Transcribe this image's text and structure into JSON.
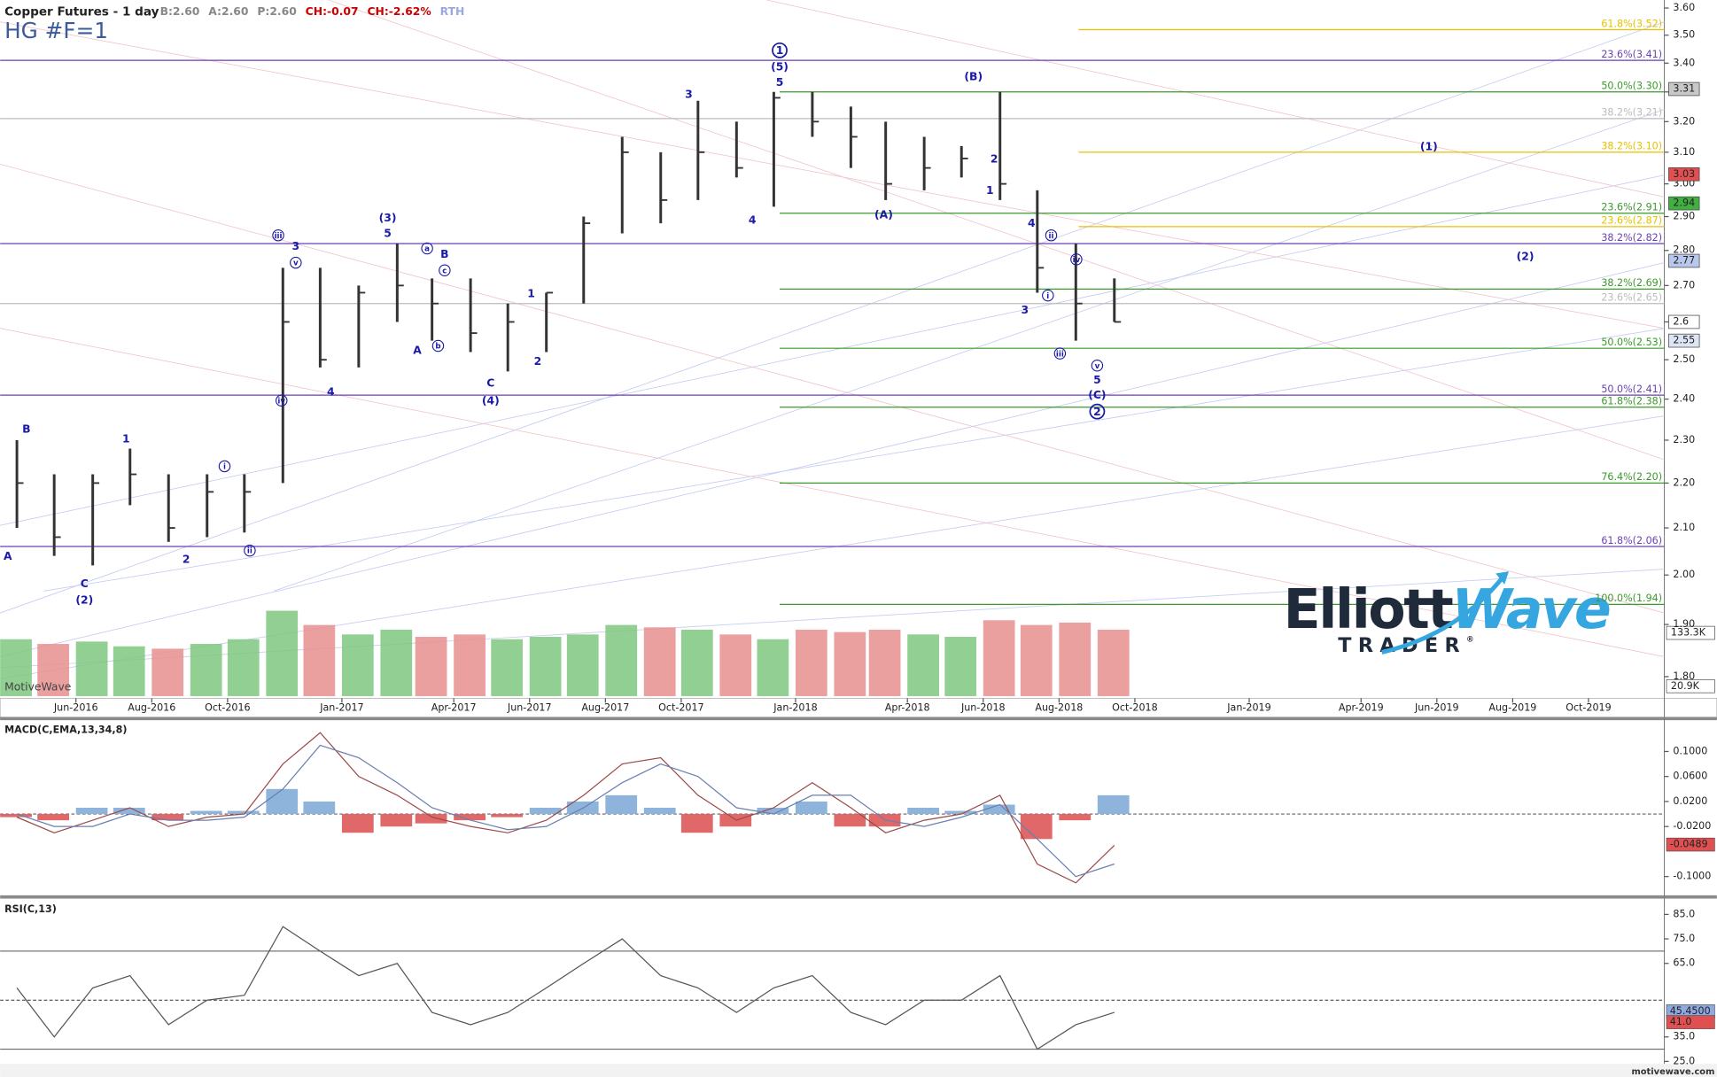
{
  "header": {
    "title": "Copper Futures - 1 day",
    "symbol": "HG #F=1",
    "quotes": [
      {
        "text": "B:2.60",
        "color": "#888888"
      },
      {
        "text": "A:2.60",
        "color": "#888888"
      },
      {
        "text": "P:2.60",
        "color": "#888888"
      },
      {
        "text": "CH:-0.07",
        "color": "#cc0000"
      },
      {
        "text": "CH:-2.62%",
        "color": "#cc0000"
      },
      {
        "text": "RTH",
        "color": "#9aa8e0"
      }
    ],
    "watermark": "MotiveWave",
    "footer": "motivewave.com"
  },
  "logo": {
    "word1": "Elliott",
    "word2": "Wave",
    "word3": "TRADER",
    "mark": "®"
  },
  "chart_data": [
    {
      "type": "hlc",
      "log_scale": true,
      "x": [
        "2016-04",
        "2016-05",
        "2016-06",
        "2016-07",
        "2016-08",
        "2016-09",
        "2016-10",
        "2016-11",
        "2016-12",
        "2017-01",
        "2017-02",
        "2017-03",
        "2017-04",
        "2017-05",
        "2017-06",
        "2017-07",
        "2017-08",
        "2017-09",
        "2017-10",
        "2017-11",
        "2017-12",
        "2018-01",
        "2018-02",
        "2018-03",
        "2018-04",
        "2018-05",
        "2018-06",
        "2018-07",
        "2018-08",
        "2018-09"
      ],
      "high": [
        2.3,
        2.22,
        2.22,
        2.28,
        2.22,
        2.22,
        2.22,
        2.75,
        2.75,
        2.7,
        2.82,
        2.72,
        2.72,
        2.65,
        2.68,
        2.9,
        3.15,
        3.1,
        3.27,
        3.2,
        3.3,
        3.3,
        3.25,
        3.2,
        3.15,
        3.12,
        3.3,
        2.98,
        2.82,
        2.72
      ],
      "low": [
        2.1,
        2.04,
        2.02,
        2.15,
        2.07,
        2.08,
        2.09,
        2.2,
        2.48,
        2.48,
        2.6,
        2.55,
        2.52,
        2.47,
        2.52,
        2.65,
        2.85,
        2.88,
        2.95,
        3.02,
        2.93,
        3.15,
        3.05,
        2.95,
        2.98,
        3.02,
        2.95,
        2.68,
        2.55,
        2.6
      ],
      "close": [
        2.2,
        2.08,
        2.2,
        2.22,
        2.1,
        2.18,
        2.18,
        2.6,
        2.5,
        2.68,
        2.7,
        2.65,
        2.57,
        2.6,
        2.68,
        2.88,
        3.1,
        2.95,
        3.1,
        3.05,
        3.28,
        3.2,
        3.15,
        3.0,
        3.05,
        3.08,
        3.0,
        2.75,
        2.65,
        2.6
      ],
      "color": "#333333",
      "volume": [
        120000,
        110000,
        115000,
        105000,
        100000,
        110000,
        120000,
        180000,
        150000,
        130000,
        140000,
        125000,
        130000,
        120000,
        125000,
        130000,
        150000,
        145000,
        140000,
        130000,
        120000,
        140000,
        135000,
        140000,
        130000,
        125000,
        160000,
        150000,
        155000,
        140000
      ],
      "volume_colors": [
        "#7fc77f",
        "#e88f8f"
      ],
      "volume_ylim": [
        0,
        300000
      ],
      "volume_tags": [
        {
          "value": 133300,
          "label": "133.3K"
        },
        {
          "value": 20900,
          "label": "20.9K"
        }
      ],
      "xlim": [
        "2016-04",
        "2019-12"
      ],
      "xticks": [
        {
          "value": "2016-06",
          "label": "Jun-2016"
        },
        {
          "value": "2016-08",
          "label": "Aug-2016"
        },
        {
          "value": "2016-10",
          "label": "Oct-2016"
        },
        {
          "value": "2017-01",
          "label": "Jan-2017"
        },
        {
          "value": "2017-04",
          "label": "Apr-2017"
        },
        {
          "value": "2017-06",
          "label": "Jun-2017"
        },
        {
          "value": "2017-08",
          "label": "Aug-2017"
        },
        {
          "value": "2017-10",
          "label": "Oct-2017"
        },
        {
          "value": "2018-01",
          "label": "Jan-2018"
        },
        {
          "value": "2018-04",
          "label": "Apr-2018"
        },
        {
          "value": "2018-06",
          "label": "Jun-2018"
        },
        {
          "value": "2018-08",
          "label": "Aug-2018"
        },
        {
          "value": "2018-10",
          "label": "Oct-2018"
        },
        {
          "value": "2019-01",
          "label": "Jan-2019"
        },
        {
          "value": "2019-04",
          "label": "Apr-2019"
        },
        {
          "value": "2019-06",
          "label": "Jun-2019"
        },
        {
          "value": "2019-08",
          "label": "Aug-2019"
        },
        {
          "value": "2019-10",
          "label": "Oct-2019"
        }
      ],
      "ylim": [
        1.76,
        3.63
      ],
      "yticks": [
        {
          "value": 3.6,
          "label": "3.60"
        },
        {
          "value": 3.5,
          "label": "3.50"
        },
        {
          "value": 3.4,
          "label": "3.40"
        },
        {
          "value": 3.3,
          "label": "3.30"
        },
        {
          "value": 3.2,
          "label": "3.20"
        },
        {
          "value": 3.1,
          "label": "3.10"
        },
        {
          "value": 3.0,
          "label": "3.00"
        },
        {
          "value": 2.9,
          "label": "2.90"
        },
        {
          "value": 2.8,
          "label": "2.80"
        },
        {
          "value": 2.7,
          "label": "2.70"
        },
        {
          "value": 2.6,
          "label": "2.60"
        },
        {
          "value": 2.5,
          "label": "2.50"
        },
        {
          "value": 2.4,
          "label": "2.40"
        },
        {
          "value": 2.3,
          "label": "2.30"
        },
        {
          "value": 2.2,
          "label": "2.20"
        },
        {
          "value": 2.1,
          "label": "2.10"
        },
        {
          "value": 2.0,
          "label": "2.00"
        },
        {
          "value": 1.9,
          "label": "1.90"
        },
        {
          "value": 1.8,
          "label": "1.80"
        }
      ],
      "fib_levels": [
        {
          "value": 3.52,
          "label": "61.8%(3.52)",
          "color": "#e8c000"
        },
        {
          "value": 3.41,
          "label": "23.6%(3.41)",
          "color": "#6a3fb5"
        },
        {
          "value": 3.3,
          "label": "50.0%(3.30)",
          "color": "#3a9a2a"
        },
        {
          "value": 3.21,
          "label": "38.2%(3.21)",
          "color": "#bbbbbb"
        },
        {
          "value": 3.1,
          "label": "38.2%(3.10)",
          "color": "#e8c000"
        },
        {
          "value": 2.91,
          "label": "23.6%(2.91)",
          "color": "#3a9a2a"
        },
        {
          "value": 2.87,
          "label": "23.6%(2.87)",
          "color": "#e8c000"
        },
        {
          "value": 2.82,
          "label": "38.2%(2.82)",
          "color": "#6a3fb5"
        },
        {
          "value": 2.69,
          "label": "38.2%(2.69)",
          "color": "#3a9a2a"
        },
        {
          "value": 2.65,
          "label": "23.6%(2.65)",
          "color": "#bbbbbb"
        },
        {
          "value": 2.53,
          "label": "50.0%(2.53)",
          "color": "#3a9a2a"
        },
        {
          "value": 2.41,
          "label": "50.0%(2.41)",
          "color": "#6a3fb5"
        },
        {
          "value": 2.38,
          "label": "61.8%(2.38)",
          "color": "#3a9a2a"
        },
        {
          "value": 2.2,
          "label": "76.4%(2.20)",
          "color": "#3a9a2a"
        },
        {
          "value": 2.06,
          "label": "61.8%(2.06)",
          "color": "#6a3fb5"
        },
        {
          "value": 1.94,
          "label": "100.0%(1.94)",
          "color": "#3a9a2a"
        }
      ],
      "price_tags": [
        {
          "value": 3.31,
          "color": "#c8c8c8"
        },
        {
          "value": 3.03,
          "color": "#e05050"
        },
        {
          "value": 2.94,
          "color": "#40b040"
        },
        {
          "value": 2.77,
          "color": "#b8c8ec"
        },
        {
          "value": 2.6,
          "color": "#ffffff"
        },
        {
          "value": 2.55,
          "color": "#dde4f4"
        }
      ],
      "wave_labels": [
        "A",
        "B",
        "C",
        "(2)",
        "1",
        "2",
        "i",
        "ii",
        "iii",
        "iv",
        "3",
        "v",
        "4",
        "(3)",
        "5",
        "a",
        "B",
        "c",
        "A",
        "b",
        "C",
        "(4)",
        "1",
        "2",
        "3",
        "4",
        "1",
        "(5)",
        "5",
        "(A)",
        "(B)",
        "2",
        "1",
        "4",
        "ii",
        "iv",
        "i",
        "3",
        "iii",
        "v",
        "5",
        "(C)",
        "2",
        "(1)",
        "(2)"
      ],
      "wave_color": "#1a1aa8"
    },
    {
      "type": "macd",
      "title": "MACD(C,EMA,13,34,8)",
      "series": [
        {
          "color": "#9c4a4a",
          "values": [
            -0.005,
            -0.03,
            -0.01,
            0.01,
            -0.02,
            -0.005,
            0.0,
            0.08,
            0.13,
            0.06,
            0.03,
            -0.005,
            -0.02,
            -0.03,
            -0.01,
            0.03,
            0.08,
            0.09,
            0.03,
            -0.01,
            0.01,
            0.05,
            0.01,
            -0.03,
            -0.01,
            0.0,
            0.03,
            -0.08,
            -0.11,
            -0.05
          ]
        },
        {
          "color": "#6a7fb0",
          "values": [
            0.0,
            -0.02,
            -0.02,
            0.0,
            -0.01,
            -0.01,
            -0.005,
            0.04,
            0.11,
            0.09,
            0.05,
            0.01,
            -0.01,
            -0.025,
            -0.02,
            0.01,
            0.05,
            0.08,
            0.06,
            0.01,
            0.0,
            0.03,
            0.03,
            -0.01,
            -0.02,
            -0.005,
            0.015,
            -0.04,
            -0.1,
            -0.08
          ]
        }
      ],
      "histogram": {
        "values": [
          -0.005,
          -0.01,
          0.01,
          0.01,
          -0.01,
          0.005,
          0.005,
          0.04,
          0.02,
          -0.03,
          -0.02,
          -0.015,
          -0.01,
          -0.005,
          0.01,
          0.02,
          0.03,
          0.01,
          -0.03,
          -0.02,
          0.01,
          0.02,
          -0.02,
          -0.02,
          0.01,
          0.005,
          0.015,
          -0.04,
          -0.01,
          0.03
        ],
        "colors": [
          "#8fb4dc",
          "#e06868"
        ]
      },
      "ylim": [
        -0.13,
        0.15
      ],
      "yticks": [
        {
          "value": 0.1,
          "label": "0.1000"
        },
        {
          "value": 0.06,
          "label": "0.0600"
        },
        {
          "value": 0.02,
          "label": "0.0200"
        },
        {
          "value": -0.02,
          "label": "-0.0200"
        },
        {
          "value": -0.1,
          "label": "-0.1000"
        }
      ],
      "levels": [
        0
      ],
      "tags": [
        {
          "value": -0.0489,
          "color": "#e05050"
        }
      ]
    },
    {
      "type": "rsi",
      "title": "RSI(C,13)",
      "series": [
        {
          "color": "#555555",
          "values": [
            55,
            35,
            55,
            60,
            40,
            50,
            52,
            80,
            70,
            60,
            65,
            45,
            40,
            45,
            55,
            65,
            75,
            60,
            55,
            45,
            55,
            60,
            45,
            40,
            50,
            50,
            60,
            30,
            40,
            45
          ]
        }
      ],
      "ylim": [
        24,
        91
      ],
      "yticks": [
        {
          "value": 85,
          "label": "85.0"
        },
        {
          "value": 75,
          "label": "75.0"
        },
        {
          "value": 65,
          "label": "65.0"
        },
        {
          "value": 35,
          "label": "35.0"
        },
        {
          "value": 25,
          "label": "25.0"
        }
      ],
      "levels": [
        70,
        50,
        30
      ],
      "tags": [
        {
          "value": 45.45,
          "label": "45.4500",
          "color": "#8fa8e0"
        },
        {
          "value": 41,
          "label": "41.0",
          "color": "#e05050"
        }
      ]
    }
  ]
}
